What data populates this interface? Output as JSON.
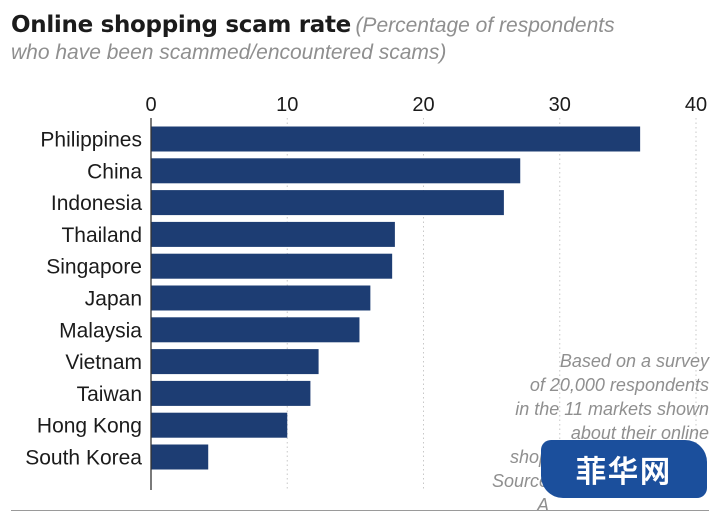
{
  "header": {
    "title": "Online shopping scam rate",
    "subtitle_line1": "(Percentage of respondents",
    "subtitle_line2": "who have been scammed/encountered scams)"
  },
  "note": {
    "lines": [
      "Based on a survey",
      "of 20,000 respondents",
      "in the 11 markets shown",
      "about their online",
      "shop",
      "Source",
      "A"
    ]
  },
  "watermark": {
    "text": "菲华网",
    "color": "#1b4f9c"
  },
  "colors": {
    "bar": "#1d3d73",
    "grid": "#c8c8c8",
    "axis": "#333333",
    "label": "#1b1b1b"
  },
  "chart_data": {
    "type": "bar",
    "orientation": "horizontal",
    "categories": [
      "Philippines",
      "China",
      "Indonesia",
      "Thailand",
      "Singapore",
      "Japan",
      "Malaysia",
      "Vietnam",
      "Taiwan",
      "Hong Kong",
      "South Korea"
    ],
    "values": [
      35.9,
      27.1,
      25.9,
      17.9,
      17.7,
      16.1,
      15.3,
      12.3,
      11.7,
      10.0,
      4.2
    ],
    "xlim": [
      0,
      40
    ],
    "xticks": [
      0,
      10,
      20,
      30,
      40
    ],
    "grid": true,
    "title": "Online shopping scam rate",
    "xlabel": "",
    "ylabel": ""
  }
}
